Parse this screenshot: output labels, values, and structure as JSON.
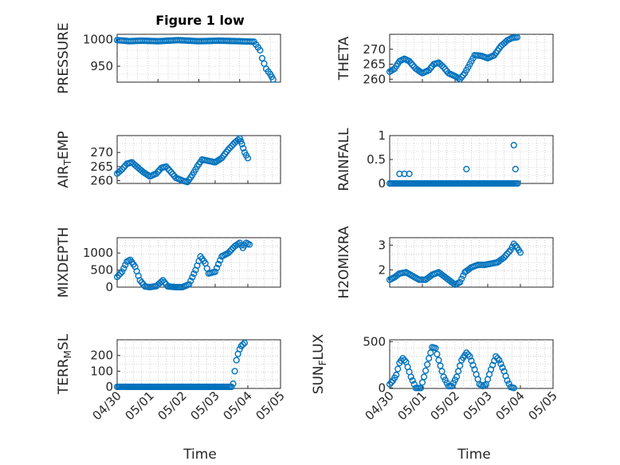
{
  "colors": {
    "marker": "#0072BD",
    "axis": "#262626",
    "grid": "#b4b4b4",
    "background": "#ffffff"
  },
  "figure_title": "Figure 1 low",
  "x_axis_label": "Time",
  "x_tick_labels": [
    "04/30",
    "05/01",
    "05/02",
    "05/03",
    "05/04",
    "05/05"
  ],
  "chart_data": [
    {
      "type": "scatter",
      "title": "Figure 1 low",
      "ylabel_parts": [
        "PRESSURE"
      ],
      "xlim": [
        0,
        4
      ],
      "ylim": [
        920,
        1010
      ],
      "yticks": [
        950,
        1000
      ],
      "ytick_labels": [
        "950",
        "1000"
      ],
      "xtick_labels_visible": false,
      "keypoints": [
        [
          0,
          999
        ],
        [
          0.3,
          997
        ],
        [
          0.6,
          998
        ],
        [
          1.0,
          997
        ],
        [
          1.5,
          999
        ],
        [
          2.0,
          997
        ],
        [
          2.5,
          998
        ],
        [
          3.0,
          997
        ],
        [
          3.35,
          996
        ],
        [
          3.5,
          980
        ],
        [
          3.55,
          965
        ],
        [
          3.6,
          955
        ],
        [
          3.65,
          945
        ],
        [
          3.75,
          935
        ],
        [
          3.82,
          925
        ]
      ]
    },
    {
      "type": "scatter",
      "ylabel_parts": [
        "THETA"
      ],
      "xlim": [
        0,
        5
      ],
      "ylim": [
        259,
        275
      ],
      "yticks": [
        260,
        265,
        270
      ],
      "ytick_labels": [
        "260",
        "265",
        "270"
      ],
      "xtick_labels_visible": false,
      "keypoints": [
        [
          0,
          262.5
        ],
        [
          0.15,
          263.5
        ],
        [
          0.3,
          266
        ],
        [
          0.45,
          266.8
        ],
        [
          0.6,
          266
        ],
        [
          0.8,
          263.5
        ],
        [
          1.0,
          262
        ],
        [
          1.2,
          263
        ],
        [
          1.35,
          265
        ],
        [
          1.5,
          265.5
        ],
        [
          1.65,
          264
        ],
        [
          1.8,
          262
        ],
        [
          2.0,
          261
        ],
        [
          2.15,
          260
        ],
        [
          2.3,
          262
        ],
        [
          2.45,
          265
        ],
        [
          2.6,
          268
        ],
        [
          2.8,
          267.8
        ],
        [
          3.0,
          267
        ],
        [
          3.2,
          268
        ],
        [
          3.4,
          271
        ],
        [
          3.6,
          273
        ],
        [
          3.75,
          273.8
        ],
        [
          3.9,
          274
        ]
      ]
    },
    {
      "type": "scatter",
      "ylabel_parts": [
        "AIR",
        "T",
        "EMP"
      ],
      "xlim": [
        0,
        5
      ],
      "ylim": [
        259,
        276
      ],
      "yticks": [
        260,
        265,
        270
      ],
      "ytick_labels": [
        "260",
        "265",
        "270"
      ],
      "xtick_labels_visible": false,
      "keypoints": [
        [
          0,
          262.5
        ],
        [
          0.15,
          264
        ],
        [
          0.3,
          266
        ],
        [
          0.45,
          266.5
        ],
        [
          0.6,
          265
        ],
        [
          0.8,
          263
        ],
        [
          1.0,
          261.5
        ],
        [
          1.2,
          262.5
        ],
        [
          1.35,
          264.5
        ],
        [
          1.5,
          265
        ],
        [
          1.65,
          263
        ],
        [
          1.8,
          261
        ],
        [
          2.0,
          260
        ],
        [
          2.15,
          259.5
        ],
        [
          2.3,
          262
        ],
        [
          2.45,
          265
        ],
        [
          2.6,
          267.5
        ],
        [
          2.8,
          267
        ],
        [
          3.0,
          266.5
        ],
        [
          3.2,
          268
        ],
        [
          3.4,
          271
        ],
        [
          3.6,
          273.5
        ],
        [
          3.75,
          275
        ],
        [
          3.82,
          273
        ],
        [
          3.9,
          270
        ],
        [
          4.0,
          268
        ]
      ]
    },
    {
      "type": "scatter",
      "ylabel_parts": [
        "RAINFALL"
      ],
      "xlim": [
        0,
        5
      ],
      "ylim": [
        0,
        1
      ],
      "yticks": [
        0,
        0.5,
        1
      ],
      "ytick_labels": [
        "0",
        "0.5",
        "1"
      ],
      "xtick_labels_visible": false,
      "baseline": 0,
      "spikes": [
        [
          0.3,
          0.2
        ],
        [
          0.45,
          0.2
        ],
        [
          0.6,
          0.2
        ],
        [
          2.35,
          0.3
        ],
        [
          3.8,
          0.8
        ],
        [
          3.85,
          0.3
        ]
      ]
    },
    {
      "type": "scatter",
      "ylabel_parts": [
        "MIXDEPTH"
      ],
      "xlim": [
        0,
        5
      ],
      "ylim": [
        0,
        1450
      ],
      "yticks": [
        0,
        500,
        1000
      ],
      "ytick_labels": [
        "0",
        "500",
        "1000"
      ],
      "xtick_labels_visible": false,
      "keypoints": [
        [
          0,
          300
        ],
        [
          0.15,
          450
        ],
        [
          0.3,
          750
        ],
        [
          0.4,
          800
        ],
        [
          0.55,
          600
        ],
        [
          0.7,
          200
        ],
        [
          0.85,
          20
        ],
        [
          1.0,
          0
        ],
        [
          1.2,
          30
        ],
        [
          1.4,
          200
        ],
        [
          1.55,
          20
        ],
        [
          1.8,
          0
        ],
        [
          2.0,
          0
        ],
        [
          2.2,
          80
        ],
        [
          2.4,
          500
        ],
        [
          2.55,
          900
        ],
        [
          2.7,
          700
        ],
        [
          2.8,
          400
        ],
        [
          3.0,
          450
        ],
        [
          3.2,
          900
        ],
        [
          3.4,
          1000
        ],
        [
          3.6,
          1200
        ],
        [
          3.75,
          1300
        ],
        [
          3.85,
          1150
        ],
        [
          3.95,
          1300
        ],
        [
          4.05,
          1250
        ]
      ]
    },
    {
      "type": "scatter",
      "ylabel_parts": [
        "H2OMIXRA"
      ],
      "xlim": [
        0,
        5
      ],
      "ylim": [
        1.3,
        3.3
      ],
      "yticks": [
        2,
        3
      ],
      "ytick_labels": [
        "2",
        "3"
      ],
      "xtick_labels_visible": false,
      "keypoints": [
        [
          0,
          1.6
        ],
        [
          0.15,
          1.7
        ],
        [
          0.3,
          1.85
        ],
        [
          0.5,
          1.9
        ],
        [
          0.7,
          1.75
        ],
        [
          0.9,
          1.6
        ],
        [
          1.1,
          1.6
        ],
        [
          1.3,
          1.8
        ],
        [
          1.5,
          1.9
        ],
        [
          1.7,
          1.7
        ],
        [
          1.9,
          1.5
        ],
        [
          2.0,
          1.4
        ],
        [
          2.15,
          1.5
        ],
        [
          2.3,
          1.9
        ],
        [
          2.5,
          2.1
        ],
        [
          2.7,
          2.2
        ],
        [
          2.9,
          2.2
        ],
        [
          3.1,
          2.25
        ],
        [
          3.3,
          2.3
        ],
        [
          3.5,
          2.5
        ],
        [
          3.7,
          2.8
        ],
        [
          3.8,
          3.05
        ],
        [
          3.9,
          2.9
        ],
        [
          4.0,
          2.7
        ]
      ]
    },
    {
      "type": "scatter",
      "ylabel_parts": [
        "TERR",
        "M",
        "SL"
      ],
      "xlim": [
        0,
        5
      ],
      "ylim": [
        -10,
        300
      ],
      "yticks": [
        0,
        100,
        200
      ],
      "ytick_labels": [
        "0",
        "100",
        "200"
      ],
      "xtick_labels_visible": true,
      "keypoints": [
        [
          0,
          0
        ],
        [
          1,
          0
        ],
        [
          2,
          0
        ],
        [
          3,
          0
        ],
        [
          3.5,
          0
        ],
        [
          3.55,
          20
        ],
        [
          3.6,
          100
        ],
        [
          3.65,
          170
        ],
        [
          3.7,
          210
        ],
        [
          3.75,
          240
        ],
        [
          3.8,
          260
        ],
        [
          3.9,
          280
        ]
      ]
    },
    {
      "type": "scatter",
      "ylabel_parts": [
        "SUN",
        "F",
        "LUX"
      ],
      "xlim": [
        0,
        5
      ],
      "ylim": [
        -5,
        520
      ],
      "yticks": [
        0,
        500
      ],
      "ytick_labels": [
        "0",
        "500"
      ],
      "xtick_labels_visible": true,
      "keypoints": [
        [
          0,
          40
        ],
        [
          0.1,
          80
        ],
        [
          0.2,
          140
        ],
        [
          0.3,
          270
        ],
        [
          0.4,
          320
        ],
        [
          0.5,
          280
        ],
        [
          0.65,
          120
        ],
        [
          0.8,
          0
        ],
        [
          0.95,
          0
        ],
        [
          1.05,
          120
        ],
        [
          1.2,
          320
        ],
        [
          1.3,
          440
        ],
        [
          1.4,
          430
        ],
        [
          1.5,
          300
        ],
        [
          1.65,
          120
        ],
        [
          1.8,
          20
        ],
        [
          1.9,
          20
        ],
        [
          2.05,
          120
        ],
        [
          2.2,
          300
        ],
        [
          2.35,
          380
        ],
        [
          2.45,
          340
        ],
        [
          2.6,
          200
        ],
        [
          2.75,
          40
        ],
        [
          2.85,
          20
        ],
        [
          2.95,
          40
        ],
        [
          3.1,
          200
        ],
        [
          3.25,
          340
        ],
        [
          3.35,
          300
        ],
        [
          3.5,
          180
        ],
        [
          3.6,
          80
        ],
        [
          3.7,
          10
        ],
        [
          3.8,
          0
        ]
      ]
    }
  ]
}
